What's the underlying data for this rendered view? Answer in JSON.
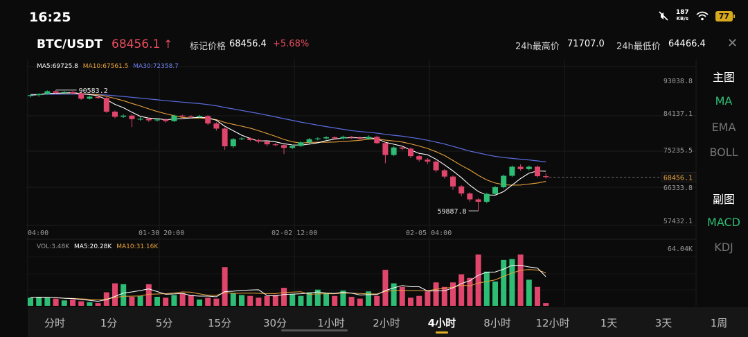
{
  "status_bar": {
    "time": "16:25",
    "speed_value": "187",
    "speed_unit": "KB/s",
    "battery": "77"
  },
  "header": {
    "pair": "BTC/USDT",
    "last_price": "68456.1",
    "mark_label": "标记价格",
    "mark_price": "68456.4",
    "change": "+5.68%",
    "high_label": "24h最高价",
    "high_value": "71707.0",
    "low_label": "24h最低价",
    "low_value": "64466.4"
  },
  "main_legend": {
    "ma5": "MA5:69725.8",
    "ma10": "MA10:67561.5",
    "ma30": "MA30:72358.7"
  },
  "vol_legend": {
    "vol": "VOL:3.48K",
    "ma5": "MA5:20.28K",
    "ma10": "MA10:31.16K"
  },
  "right_panel": {
    "main_title": "主图",
    "ma": "MA",
    "ema": "EMA",
    "boll": "BOLL",
    "sub_title": "副图",
    "macd": "MACD",
    "kdj": "KDJ"
  },
  "tabs": [
    "分时",
    "1分",
    "5分",
    "15分",
    "30分",
    "1小时",
    "2小时",
    "4小时",
    "8小时",
    "12小时",
    "1天",
    "3天",
    "1周"
  ],
  "active_tab": "4小时",
  "colors": {
    "up": "#2ebd74",
    "down": "#e0466c",
    "ma5": "#ffffff",
    "ma10": "#e8a23c",
    "ma30": "#5b6de0",
    "accent": "#e0b024"
  },
  "chart_data": {
    "type": "candlestick",
    "price_axis_ticks": [
      "93038.8",
      "84137.1",
      "75235.5",
      "66333.8",
      "57432.1"
    ],
    "volume_axis_max": "64.04K",
    "time_axis_labels": [
      "04:00",
      "01-30 20:00",
      "02-02 12:00",
      "02-05 04:00"
    ],
    "current_price_tag": "68456.1",
    "max_price_annotation": "90583.2",
    "min_price_annotation": "59887.8",
    "ylim": [
      57432.1,
      93038.8
    ],
    "candles": [
      [
        89100,
        89300,
        88700,
        89400
      ],
      [
        89300,
        89600,
        88900,
        89800
      ],
      [
        89600,
        90300,
        89400,
        90500
      ],
      [
        90300,
        89900,
        89600,
        90583.2
      ],
      [
        89900,
        90100,
        89500,
        90400
      ],
      [
        90100,
        89800,
        89500,
        90300
      ],
      [
        89800,
        88400,
        88100,
        90000
      ],
      [
        88400,
        88900,
        88200,
        89200
      ],
      [
        88900,
        88600,
        88300,
        89100
      ],
      [
        88600,
        85100,
        84800,
        88800
      ],
      [
        85100,
        83800,
        83400,
        85400
      ],
      [
        83800,
        84100,
        83500,
        84400
      ],
      [
        84100,
        83200,
        81200,
        84500
      ],
      [
        83200,
        83300,
        82800,
        83700
      ],
      [
        83300,
        82900,
        82500,
        83600
      ],
      [
        82900,
        83100,
        82600,
        83500
      ],
      [
        83100,
        82700,
        82300,
        83400
      ],
      [
        82700,
        84100,
        82500,
        84400
      ],
      [
        84100,
        83900,
        83600,
        84300
      ],
      [
        83900,
        83700,
        83400,
        84200
      ],
      [
        83700,
        84000,
        83500,
        84300
      ],
      [
        84000,
        82100,
        81700,
        84200
      ],
      [
        82100,
        80800,
        80300,
        82400
      ],
      [
        80800,
        76300,
        75400,
        81100
      ],
      [
        76300,
        78100,
        75900,
        78400
      ],
      [
        78100,
        78300,
        77900,
        78600
      ],
      [
        78300,
        77900,
        77600,
        78600
      ],
      [
        77900,
        77500,
        77100,
        78200
      ],
      [
        77500,
        76800,
        76300,
        77800
      ],
      [
        76800,
        76600,
        76300,
        77100
      ],
      [
        76600,
        75900,
        74300,
        76900
      ],
      [
        75900,
        76400,
        75600,
        76700
      ],
      [
        76400,
        77300,
        76100,
        77600
      ],
      [
        77300,
        78100,
        76900,
        78400
      ],
      [
        78100,
        78300,
        77800,
        78600
      ],
      [
        78300,
        78600,
        78000,
        78900
      ],
      [
        78600,
        78300,
        78000,
        78800
      ],
      [
        78300,
        78700,
        78000,
        79000
      ],
      [
        78700,
        78500,
        78200,
        78900
      ],
      [
        78500,
        78200,
        77800,
        78800
      ],
      [
        78200,
        78700,
        77900,
        79100
      ],
      [
        78700,
        77100,
        76900,
        79000
      ],
      [
        77100,
        74100,
        72000,
        77400
      ],
      [
        74100,
        76000,
        73800,
        76300
      ],
      [
        76000,
        75700,
        75300,
        76400
      ],
      [
        75700,
        73800,
        73300,
        76000
      ],
      [
        73800,
        72900,
        72400,
        74100
      ],
      [
        72900,
        72400,
        71800,
        73300
      ],
      [
        72400,
        70200,
        69700,
        72700
      ],
      [
        70200,
        68600,
        68100,
        70500
      ],
      [
        68600,
        66100,
        65200,
        68900
      ],
      [
        66100,
        64300,
        63600,
        66400
      ],
      [
        64300,
        62800,
        62200,
        64600
      ],
      [
        62800,
        62200,
        59887.8,
        63100
      ],
      [
        62200,
        64200,
        61800,
        64500
      ],
      [
        64200,
        65900,
        63900,
        66200
      ],
      [
        65900,
        68800,
        65600,
        69100
      ],
      [
        68800,
        71100,
        68500,
        71400
      ],
      [
        71100,
        70500,
        70100,
        71707
      ],
      [
        70500,
        71100,
        70200,
        71400
      ],
      [
        71100,
        68700,
        68300,
        71400
      ],
      [
        68700,
        68456.1,
        68100,
        69400
      ]
    ],
    "volumes": [
      9,
      10,
      9,
      8,
      6,
      7,
      5,
      4,
      3,
      15,
      25,
      24,
      10,
      11,
      24,
      10,
      9,
      12,
      14,
      12,
      7,
      9,
      8,
      43,
      14,
      12,
      11,
      9,
      11,
      12,
      20,
      13,
      11,
      15,
      18,
      14,
      11,
      17,
      10,
      8,
      16,
      11,
      40,
      25,
      21,
      9,
      11,
      16,
      26,
      21,
      26,
      35,
      31,
      57,
      38,
      27,
      51,
      52,
      57,
      29,
      21,
      3
    ]
  }
}
